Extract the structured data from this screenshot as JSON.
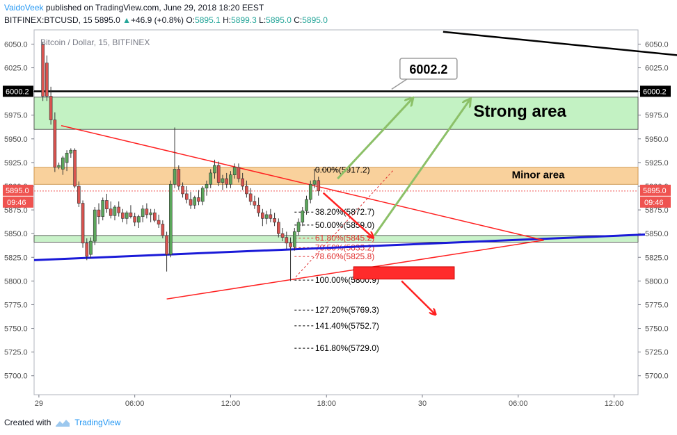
{
  "header": {
    "author": "VaidoVeek",
    "published_text": "published on TradingView.com, June 29, 2018 18:20 EEST",
    "symbol": "BITFINEX:BTCUSD, 15",
    "last": "5895.0",
    "change": "+46.9 (+0.8%)",
    "o_label": "O:",
    "o_value": "5895.1",
    "h_label": "H:",
    "h_value": "5899.3",
    "l_label": "L:",
    "l_value": "5895.0",
    "c_label": "C:",
    "c_value": "5895.0"
  },
  "footer": {
    "created_with": "Created with",
    "brand": "TradingView"
  },
  "colors": {
    "up": "#26a69a",
    "down": "#ef5350",
    "strong_zone": "#b9f0b9",
    "minor_zone": "#f8c98b",
    "support_zone": "#bff0bf",
    "blue_line": "#1a1ad8",
    "red_line": "#ff2020",
    "green_arrow": "#8cc068"
  },
  "chart_data": {
    "type": "candlestick",
    "title": "Bitcoin / Dollar, 15, BITFINEX",
    "x_ticks": [
      "29",
      "06:00",
      "12:00",
      "18:00",
      "30",
      "06:00",
      "12:00"
    ],
    "x_hours": [
      0,
      6,
      12,
      18,
      24,
      30,
      36
    ],
    "y_ticks": [
      6050.0,
      6025.0,
      6000.0,
      5975.0,
      5950.0,
      5925.0,
      5900.0,
      5875.0,
      5850.0,
      5825.0,
      5800.0,
      5775.0,
      5750.0,
      5725.0,
      5700.0
    ],
    "y_tick_labels": [
      "6050.0",
      "6025.0",
      "6000.0",
      "5975.0",
      "5950.0",
      "5925.0",
      "5900.0",
      "5875.0",
      "5850.0",
      "5825.0",
      "5800.0",
      "5775.0",
      "5750.0",
      "5725.0",
      "5700.0"
    ],
    "ylim": [
      5680,
      6065
    ],
    "xlim": [
      -0.3,
      37.5
    ],
    "price_label": "5895.0",
    "time_label": "09:46",
    "level_label": "6000.2",
    "callout_label": "6002.2",
    "zones": [
      {
        "name": "Strong area",
        "from": 5960,
        "to": 5994
      },
      {
        "name": "Minor area",
        "from": 5902,
        "to": 5920
      },
      {
        "name": "",
        "from": 5841,
        "to": 5848
      }
    ],
    "horizontal_level": 6000.2,
    "fib_levels": [
      {
        "label": "0.00%(5917.2)",
        "value": 5917.2
      },
      {
        "label": "38.20%(5872.7)",
        "value": 5872.7
      },
      {
        "label": "50.00%(5859.0)",
        "value": 5859.0
      },
      {
        "label": "61.80%(5845.2)",
        "value": 5845.2
      },
      {
        "label": "70.50%(5835.2)",
        "value": 5835.2
      },
      {
        "label": "78.60%(5825.8)",
        "value": 5825.8
      },
      {
        "label": "100.00%(5800.9)",
        "value": 5800.9
      },
      {
        "label": "127.20%(5769.3)",
        "value": 5769.3
      },
      {
        "label": "141.40%(5752.7)",
        "value": 5752.7
      },
      {
        "label": "161.80%(5729.0)",
        "value": 5729.0
      }
    ],
    "candles": [
      [
        0.25,
        6050,
        6052,
        5990,
        5995
      ],
      [
        0.5,
        6030,
        6038,
        5990,
        5995
      ],
      [
        0.75,
        5995,
        6005,
        5965,
        5970
      ],
      [
        1.0,
        5970,
        5978,
        5915,
        5920
      ],
      [
        1.25,
        5920,
        5925,
        5918,
        5922
      ],
      [
        1.5,
        5918,
        5932,
        5912,
        5930
      ],
      [
        1.75,
        5925,
        5938,
        5916,
        5935
      ],
      [
        2.0,
        5935,
        5940,
        5930,
        5938
      ],
      [
        2.25,
        5938,
        5940,
        5898,
        5900
      ],
      [
        2.5,
        5900,
        5905,
        5878,
        5882
      ],
      [
        2.75,
        5882,
        5885,
        5835,
        5840
      ],
      [
        3.0,
        5840,
        5845,
        5822,
        5826
      ],
      [
        3.25,
        5828,
        5846,
        5824,
        5842
      ],
      [
        3.5,
        5842,
        5878,
        5838,
        5875
      ],
      [
        3.75,
        5875,
        5882,
        5860,
        5868
      ],
      [
        4.0,
        5868,
        5888,
        5864,
        5885
      ],
      [
        4.25,
        5885,
        5892,
        5872,
        5876
      ],
      [
        4.5,
        5876,
        5884,
        5866,
        5869
      ],
      [
        4.75,
        5869,
        5880,
        5864,
        5878
      ],
      [
        5.0,
        5878,
        5884,
        5868,
        5872
      ],
      [
        5.25,
        5872,
        5876,
        5862,
        5866
      ],
      [
        5.5,
        5866,
        5874,
        5860,
        5872
      ],
      [
        5.75,
        5872,
        5880,
        5866,
        5868
      ],
      [
        6.0,
        5868,
        5872,
        5858,
        5862
      ],
      [
        6.25,
        5862,
        5870,
        5856,
        5868
      ],
      [
        6.5,
        5868,
        5880,
        5862,
        5876
      ],
      [
        6.75,
        5876,
        5882,
        5866,
        5870
      ],
      [
        7.0,
        5870,
        5876,
        5862,
        5872
      ],
      [
        7.25,
        5872,
        5876,
        5862,
        5864
      ],
      [
        7.5,
        5864,
        5870,
        5856,
        5860
      ],
      [
        7.75,
        5860,
        5864,
        5845,
        5848
      ],
      [
        8.0,
        5848,
        5852,
        5810,
        5828
      ],
      [
        8.25,
        5828,
        5906,
        5825,
        5902
      ],
      [
        8.5,
        5902,
        5962,
        5898,
        5918
      ],
      [
        8.75,
        5918,
        5922,
        5896,
        5900
      ],
      [
        9.0,
        5900,
        5904,
        5888,
        5892
      ],
      [
        9.25,
        5892,
        5900,
        5882,
        5886
      ],
      [
        9.5,
        5886,
        5894,
        5876,
        5880
      ],
      [
        9.75,
        5880,
        5890,
        5876,
        5888
      ],
      [
        10.0,
        5888,
        5896,
        5880,
        5884
      ],
      [
        10.25,
        5884,
        5900,
        5880,
        5898
      ],
      [
        10.5,
        5898,
        5906,
        5890,
        5902
      ],
      [
        10.75,
        5902,
        5918,
        5898,
        5914
      ],
      [
        11.0,
        5914,
        5928,
        5908,
        5922
      ],
      [
        11.25,
        5922,
        5926,
        5900,
        5904
      ],
      [
        11.5,
        5904,
        5912,
        5896,
        5908
      ],
      [
        11.75,
        5908,
        5914,
        5898,
        5902
      ],
      [
        12.0,
        5902,
        5916,
        5898,
        5912
      ],
      [
        12.25,
        5912,
        5924,
        5908,
        5920
      ],
      [
        12.5,
        5920,
        5924,
        5904,
        5908
      ],
      [
        12.75,
        5908,
        5914,
        5896,
        5900
      ],
      [
        13.0,
        5900,
        5906,
        5888,
        5892
      ],
      [
        13.25,
        5892,
        5898,
        5880,
        5884
      ],
      [
        13.5,
        5884,
        5890,
        5876,
        5880
      ],
      [
        13.75,
        5880,
        5888,
        5868,
        5872
      ],
      [
        14.0,
        5872,
        5876,
        5858,
        5866
      ],
      [
        14.25,
        5866,
        5874,
        5860,
        5870
      ],
      [
        14.5,
        5870,
        5876,
        5862,
        5866
      ],
      [
        14.75,
        5866,
        5872,
        5858,
        5862
      ],
      [
        15.0,
        5862,
        5866,
        5846,
        5850
      ],
      [
        15.25,
        5850,
        5856,
        5842,
        5846
      ],
      [
        15.5,
        5846,
        5852,
        5834,
        5840
      ],
      [
        15.75,
        5840,
        5846,
        5800,
        5836
      ],
      [
        16.0,
        5836,
        5856,
        5832,
        5852
      ],
      [
        16.25,
        5852,
        5866,
        5848,
        5862
      ],
      [
        16.5,
        5862,
        5878,
        5858,
        5874
      ],
      [
        16.75,
        5874,
        5890,
        5870,
        5886
      ],
      [
        17.0,
        5886,
        5906,
        5882,
        5902
      ],
      [
        17.25,
        5902,
        5917,
        5898,
        5906
      ],
      [
        17.5,
        5906,
        5910,
        5890,
        5895
      ]
    ],
    "annotations": [
      {
        "text": "Strong area"
      },
      {
        "text": "Minor area"
      }
    ]
  }
}
